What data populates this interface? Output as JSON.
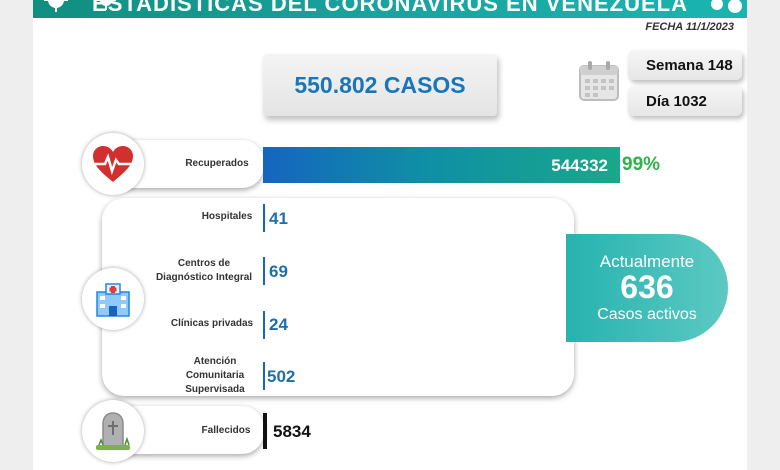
{
  "header": {
    "title": "ESTADÍSTICAS DEL CORONAVIRUS EN VENEZUELA",
    "date": "FECHA 11/1/2023"
  },
  "total_cases": "550.802 CASOS",
  "week": "Semana 148",
  "day": "Día 1032",
  "recovered": {
    "label": "Recuperados",
    "value": "544332",
    "percent": "99%"
  },
  "facilities": [
    {
      "label": "Hospitales",
      "value": "41"
    },
    {
      "label": "Centros de Diagnóstico Integral",
      "value": "69"
    },
    {
      "label": "Clínicas privadas",
      "value": "24"
    },
    {
      "label": "Atención Comunitaria Supervisada",
      "value": "502"
    }
  ],
  "active": {
    "line1": "Actualmente",
    "number": "636",
    "line2": "Casos activos"
  },
  "deaths": {
    "label": "Fallecidos",
    "value": "5834"
  },
  "icons": [
    "heart-icon",
    "hospital-icon",
    "tombstone-icon",
    "calendar-icon",
    "virus-icon"
  ],
  "colors": {
    "banner": "#1aa3a0",
    "case_blue": "#1976b8",
    "percent_green": "#2db34a",
    "active_teal": "#27b3b0"
  }
}
